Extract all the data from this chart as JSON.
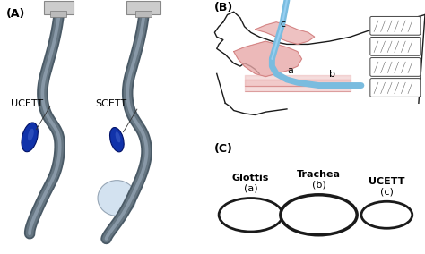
{
  "panel_A_label": "(A)",
  "panel_B_label": "(B)",
  "panel_C_label": "(C)",
  "label_UCETT": "UCETT",
  "label_SCETT": "SCETT",
  "label_Glottis": "Glottis",
  "label_Trachea": "Trachea",
  "label_UCETT_c": "UCETT",
  "label_a": "a",
  "label_b": "b",
  "label_c": "c",
  "label_a_paren": "(a)",
  "label_b_paren": "(b)",
  "label_c_paren": "(c)",
  "bg_color_A": "#b0c8d8",
  "tube_gray": "#7a8a96",
  "tube_dark": "#4a5a66",
  "tube_blue_fill": "#2244aa",
  "tube_blue_light": "#88bbdd",
  "pink_fill": "#e8a8a8",
  "pink_dark": "#cc7777",
  "outline_color": "#1a1a1a",
  "circle_color": "#1a1a1a",
  "arrow_blue": "#7abcdf",
  "arrow_blue_dark": "#4a9abf",
  "lw_circle_small": 1.8,
  "lw_circle_medium": 2.5,
  "label_fontsize": 7,
  "panel_fontsize": 9,
  "bold_fontsize": 8
}
